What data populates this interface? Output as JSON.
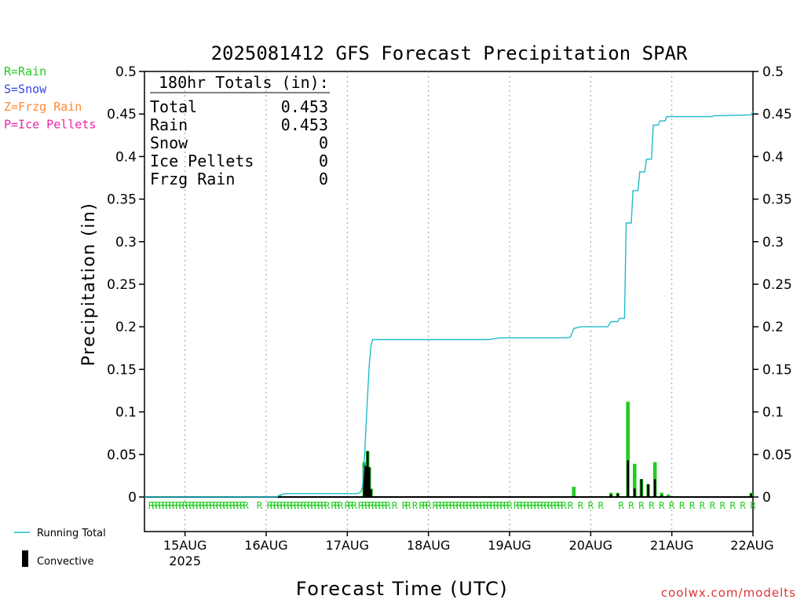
{
  "chart_data": {
    "type": "bar",
    "title": "2025081412 GFS Forecast Precipitation SPAR",
    "xlabel": "Forecast Time (UTC)",
    "ylabel": "Precipitation (in)",
    "ylim": [
      0,
      0.5
    ],
    "y_ticks": [
      0,
      0.05,
      0.1,
      0.15,
      0.2,
      0.25,
      0.3,
      0.35,
      0.4,
      0.45,
      0.5
    ],
    "x_range_hours": [
      0,
      180
    ],
    "x_ticks": [
      {
        "label": "15AUG",
        "sublabel": "2025",
        "hour": 12
      },
      {
        "label": "16AUG",
        "hour": 36
      },
      {
        "label": "17AUG",
        "hour": 60
      },
      {
        "label": "18AUG",
        "hour": 84
      },
      {
        "label": "19AUG",
        "hour": 108
      },
      {
        "label": "20AUG",
        "hour": 132
      },
      {
        "label": "21AUG",
        "hour": 156
      },
      {
        "label": "22AUG",
        "hour": 180
      }
    ],
    "precip_type_legend": [
      {
        "text": "R=Rain",
        "color": "#22cc22"
      },
      {
        "text": "S=Snow",
        "color": "#3344ee"
      },
      {
        "text": "Z=Frzg Rain",
        "color": "#ff8833"
      },
      {
        "text": "P=Ice Pellets",
        "color": "#ee22aa"
      }
    ],
    "totals_box": {
      "header": "180hr Totals (in):",
      "rows": [
        {
          "label": "Total",
          "value": "0.453"
        },
        {
          "label": "Rain",
          "value": "0.453"
        },
        {
          "label": "Snow",
          "value": "0"
        },
        {
          "label": "Ice Pellets",
          "value": "0"
        },
        {
          "label": "Frzg Rain",
          "value": "0"
        }
      ]
    },
    "series": [
      {
        "name": "Running Total",
        "type": "line",
        "color": "#22bbcc",
        "points": [
          [
            0,
            0
          ],
          [
            39,
            0
          ],
          [
            40,
            0.002
          ],
          [
            41.5,
            0.004
          ],
          [
            63,
            0.004
          ],
          [
            64,
            0.006
          ],
          [
            64.5,
            0.012
          ],
          [
            65,
            0.04
          ],
          [
            65.5,
            0.08
          ],
          [
            66,
            0.12
          ],
          [
            66.5,
            0.155
          ],
          [
            67,
            0.178
          ],
          [
            67.5,
            0.185
          ],
          [
            81,
            0.185
          ],
          [
            102,
            0.185
          ],
          [
            105,
            0.187
          ],
          [
            125,
            0.187
          ],
          [
            126,
            0.188
          ],
          [
            127,
            0.198
          ],
          [
            129,
            0.2
          ],
          [
            130,
            0.2
          ],
          [
            137,
            0.2
          ],
          [
            138,
            0.206
          ],
          [
            140,
            0.206
          ],
          [
            140.5,
            0.21
          ],
          [
            142,
            0.21
          ],
          [
            142.5,
            0.322
          ],
          [
            144,
            0.322
          ],
          [
            144.5,
            0.36
          ],
          [
            146,
            0.36
          ],
          [
            146.5,
            0.382
          ],
          [
            148,
            0.382
          ],
          [
            148.5,
            0.397
          ],
          [
            150,
            0.397
          ],
          [
            150.5,
            0.437
          ],
          [
            152,
            0.437
          ],
          [
            152.5,
            0.442
          ],
          [
            154,
            0.442
          ],
          [
            154.5,
            0.447
          ],
          [
            168,
            0.447
          ],
          [
            168.5,
            0.448
          ],
          [
            179.5,
            0.449
          ],
          [
            180,
            0.453
          ]
        ]
      },
      {
        "name": "Rain",
        "type": "bar",
        "color": "#22cc22",
        "bars": [
          [
            40,
            0.002
          ],
          [
            65,
            0.041
          ],
          [
            65.5,
            0.038
          ],
          [
            66,
            0.054
          ],
          [
            66.5,
            0.035
          ],
          [
            67,
            0.01
          ],
          [
            127,
            0.012
          ],
          [
            138,
            0.005
          ],
          [
            140,
            0.005
          ],
          [
            143,
            0.112
          ],
          [
            145,
            0.039
          ],
          [
            147,
            0.021
          ],
          [
            149,
            0.015
          ],
          [
            151,
            0.041
          ],
          [
            153,
            0.005
          ],
          [
            155,
            0.003
          ],
          [
            179.5,
            0.005
          ]
        ]
      },
      {
        "name": "Convective",
        "type": "bar",
        "color": "#000000",
        "bars": [
          [
            40,
            0.001
          ],
          [
            65,
            0.038
          ],
          [
            65.5,
            0.036
          ],
          [
            66,
            0.054
          ],
          [
            66.5,
            0.035
          ],
          [
            67,
            0.009
          ],
          [
            138,
            0.003
          ],
          [
            140,
            0.004
          ],
          [
            143,
            0.043
          ],
          [
            145,
            0.01
          ],
          [
            147,
            0.021
          ],
          [
            149,
            0.015
          ],
          [
            151,
            0.021
          ],
          [
            153,
            0.002
          ],
          [
            179.5,
            0.004
          ]
        ]
      }
    ],
    "type_marks": {
      "symbol": "R",
      "color": "#22cc22",
      "hours": [
        2,
        3,
        4,
        5,
        6,
        7,
        8,
        9,
        10,
        11,
        12,
        13,
        14,
        15,
        16,
        17,
        18,
        19,
        20,
        21,
        22,
        23,
        24,
        25,
        26,
        27,
        28,
        29,
        30,
        34,
        37,
        38,
        39,
        40,
        41,
        42,
        43,
        44,
        45,
        46,
        47,
        48,
        49,
        50,
        51,
        52,
        53,
        54,
        56,
        57,
        58,
        60,
        61,
        62,
        64,
        65,
        66,
        67,
        68,
        69,
        70,
        71,
        72,
        74,
        77,
        78,
        80,
        82,
        83,
        84,
        86,
        87,
        88,
        89,
        90,
        91,
        92,
        93,
        94,
        95,
        96,
        97,
        98,
        99,
        100,
        101,
        102,
        103,
        104,
        105,
        106,
        107,
        108,
        110,
        111,
        112,
        113,
        114,
        115,
        116,
        117,
        118,
        119,
        120,
        121,
        122,
        123,
        124,
        126,
        129,
        132,
        135,
        141,
        144,
        147,
        150,
        153,
        156,
        159,
        162,
        165,
        168,
        171,
        174,
        177,
        180
      ]
    },
    "legend": [
      {
        "label": "Running Total",
        "kind": "line",
        "color": "#22bbcc"
      },
      {
        "label": "Convective",
        "kind": "bar",
        "color": "#000000"
      }
    ],
    "grid": true,
    "grid_style": "dotted vertical at day boundaries",
    "credit": "coolwx.com/modelts"
  }
}
